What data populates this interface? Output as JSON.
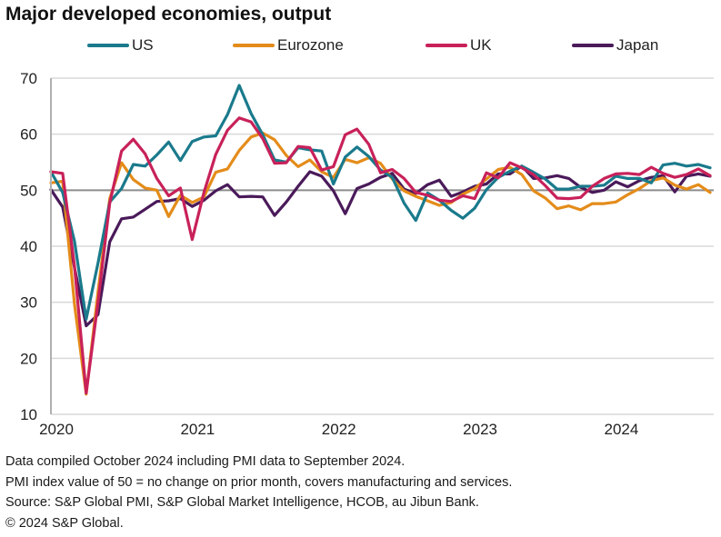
{
  "chart_data": {
    "type": "line",
    "title": "Major developed economies, output",
    "xlabel": "",
    "ylabel": "",
    "ylim": [
      10,
      70
    ],
    "yticks": [
      10,
      20,
      30,
      40,
      50,
      60,
      70
    ],
    "xticks": [
      "2020",
      "2021",
      "2022",
      "2023",
      "2024"
    ],
    "x_start": "2020-01",
    "x_end": "2024-09",
    "frequency": "monthly",
    "reference_line": 50,
    "grid": true,
    "legend": "top",
    "series": [
      {
        "name": "US",
        "color": "#1a7a8c",
        "values": [
          53.3,
          49.6,
          40.9,
          27.0,
          37.0,
          47.9,
          50.3,
          54.6,
          54.3,
          56.3,
          58.6,
          55.3,
          58.7,
          59.5,
          59.7,
          63.5,
          68.7,
          63.7,
          59.9,
          55.4,
          55.0,
          57.6,
          57.2,
          57.0,
          51.1,
          55.9,
          57.7,
          56.0,
          53.6,
          52.3,
          47.7,
          44.6,
          49.5,
          48.2,
          46.4,
          45.0,
          46.8,
          50.1,
          52.3,
          53.4,
          54.3,
          53.2,
          52.0,
          50.2,
          50.2,
          50.7,
          50.7,
          50.9,
          52.5,
          52.1,
          52.1,
          51.3,
          54.5,
          54.8,
          54.3,
          54.6,
          54.0
        ]
      },
      {
        "name": "Eurozone",
        "color": "#e48c1a",
        "values": [
          51.3,
          51.6,
          29.7,
          13.6,
          31.9,
          48.5,
          54.9,
          51.9,
          50.4,
          50.0,
          45.3,
          49.1,
          47.8,
          48.8,
          53.2,
          53.8,
          57.1,
          59.5,
          60.2,
          59.0,
          56.2,
          54.2,
          55.4,
          53.3,
          52.3,
          55.5,
          54.9,
          55.8,
          54.8,
          52.0,
          49.9,
          48.9,
          48.1,
          47.3,
          47.8,
          49.3,
          50.3,
          52.0,
          53.7,
          54.1,
          52.8,
          49.9,
          48.6,
          46.7,
          47.2,
          46.5,
          47.6,
          47.6,
          47.9,
          49.2,
          50.3,
          51.7,
          52.2,
          50.9,
          50.2,
          51.0,
          49.6
        ]
      },
      {
        "name": "UK",
        "color": "#c8215a",
        "values": [
          53.3,
          53.0,
          36.5,
          13.8,
          30.0,
          47.7,
          57.0,
          59.1,
          56.5,
          52.1,
          49.0,
          50.4,
          41.2,
          49.6,
          56.4,
          60.7,
          62.9,
          62.2,
          59.2,
          54.8,
          54.9,
          57.8,
          57.6,
          53.6,
          54.2,
          59.9,
          60.9,
          58.2,
          53.1,
          53.7,
          52.1,
          49.6,
          49.1,
          48.2,
          48.0,
          49.0,
          48.5,
          53.1,
          52.2,
          54.9,
          54.0,
          52.8,
          50.8,
          48.6,
          48.5,
          48.7,
          50.7,
          52.1,
          52.9,
          53.0,
          52.8,
          54.1,
          53.0,
          52.3,
          52.8,
          53.8,
          52.6
        ]
      },
      {
        "name": "Japan",
        "color": "#4a1a5a",
        "values": [
          50.1,
          47.0,
          36.2,
          25.8,
          27.8,
          40.8,
          44.9,
          45.2,
          46.6,
          48.0,
          48.1,
          48.5,
          47.1,
          48.2,
          49.9,
          51.0,
          48.8,
          48.9,
          48.8,
          45.5,
          47.9,
          50.7,
          53.3,
          52.5,
          49.9,
          45.8,
          50.3,
          51.1,
          52.3,
          53.0,
          50.2,
          49.4,
          51.0,
          51.8,
          48.9,
          49.7,
          50.7,
          51.1,
          52.9,
          52.9,
          54.3,
          52.1,
          52.2,
          52.6,
          52.1,
          50.5,
          49.6,
          50.0,
          51.5,
          50.6,
          51.7,
          52.3,
          52.6,
          49.7,
          52.5,
          52.9,
          52.5
        ]
      }
    ]
  },
  "footnotes": [
    "Data compiled October 2024 including PMI data to September 2024.",
    "PMI index value of 50 = no change on prior month, covers manufacturing and services.",
    "Source: S&P Global PMI, S&P Global Market Intelligence, HCOB, au Jibun Bank.",
    "© 2024 S&P Global."
  ]
}
